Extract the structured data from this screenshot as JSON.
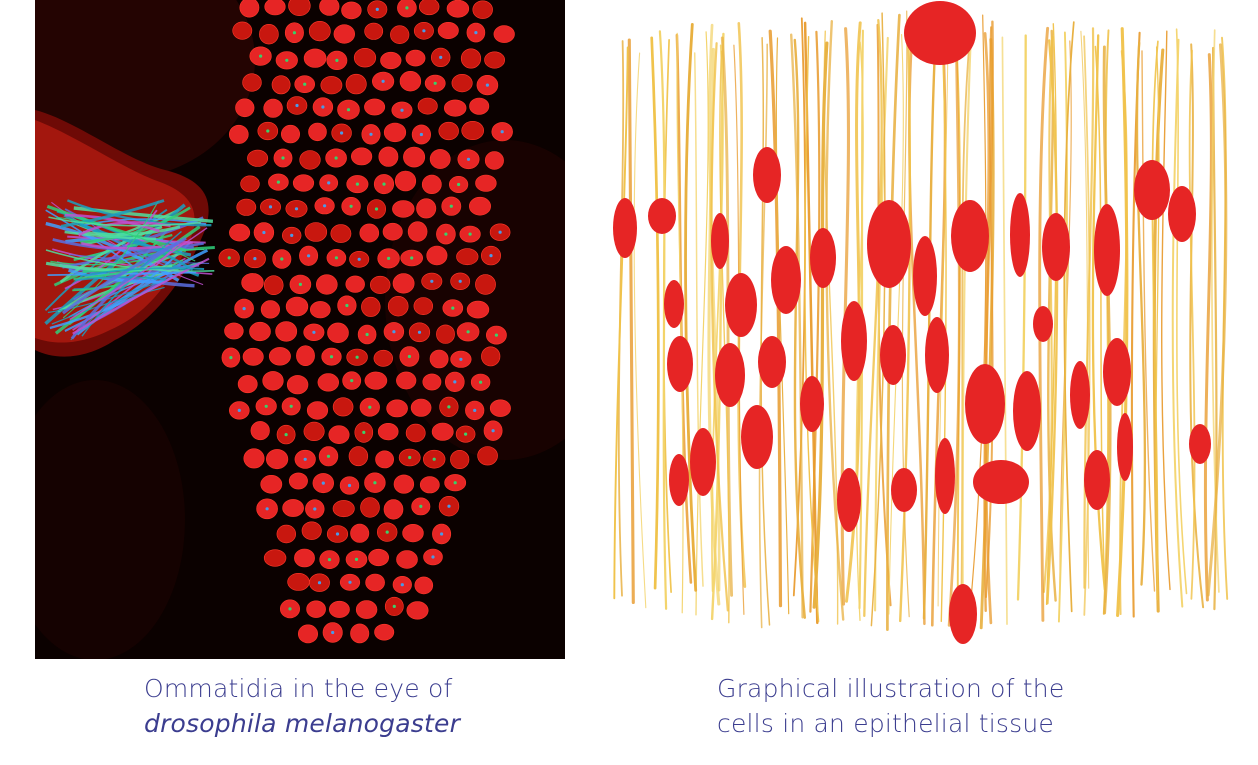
{
  "left_figure": {
    "image": "confocal-microscopy-ommatidia",
    "caption_line1": "Ommatidia in the eye of",
    "caption_line2": "drosophila melanogaster"
  },
  "right_figure": {
    "image": "epithelial-tissue-illustration",
    "caption_line1": "Graphical illustration of the",
    "caption_line2": "cells in an epithelial tissue"
  },
  "colors": {
    "caption_text": "#3b3d8f",
    "cell_red": "#e62525",
    "fiber_yellow": "#f0c24a",
    "fiber_orange": "#e89a2c"
  }
}
